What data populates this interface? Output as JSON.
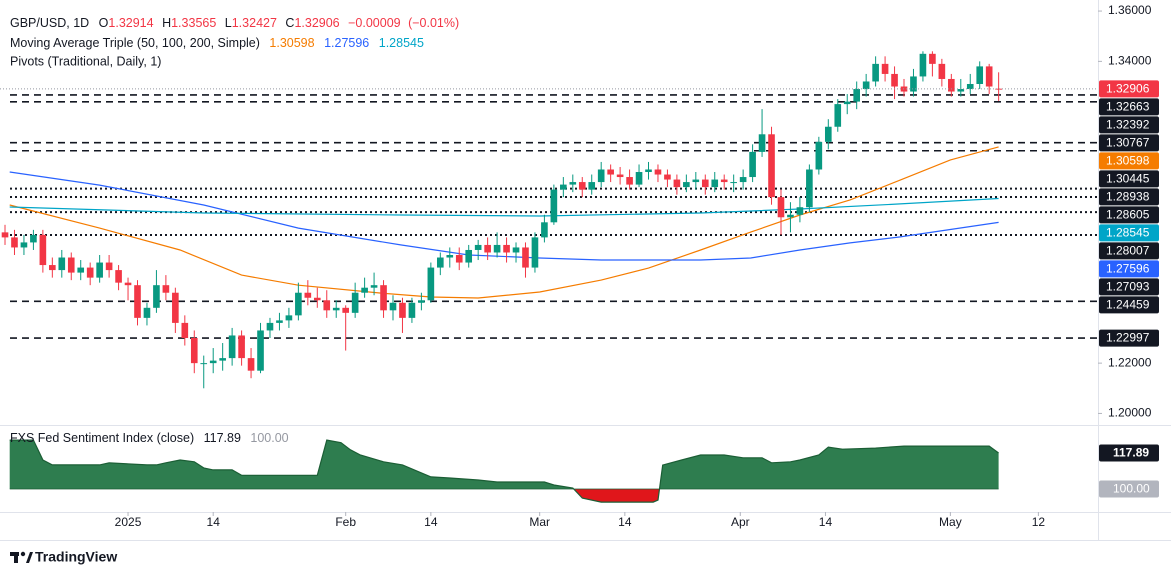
{
  "chart_data": {
    "type": "candlestick",
    "symbol": "GBP/USD, 1D",
    "ohlc_keys": [
      "O",
      "H",
      "L",
      "C"
    ],
    "ohlc": [
      1.32914,
      1.33565,
      1.32427,
      1.32906
    ],
    "change": {
      "value": -9e-05,
      "label": "−0.00009"
    },
    "change_pct": {
      "value": -0.01,
      "label": "(−0.01%)"
    },
    "up_color": "#089981",
    "down_color": "#f23645",
    "candles": [
      [
        1.272,
        1.275,
        1.267,
        1.27
      ],
      [
        1.27,
        1.273,
        1.263,
        1.266
      ],
      [
        1.266,
        1.271,
        1.263,
        1.268
      ],
      [
        1.268,
        1.273,
        1.265,
        1.271
      ],
      [
        1.271,
        1.273,
        1.256,
        1.259
      ],
      [
        1.259,
        1.262,
        1.254,
        1.257
      ],
      [
        1.257,
        1.265,
        1.254,
        1.262
      ],
      [
        1.262,
        1.264,
        1.253,
        1.256
      ],
      [
        1.256,
        1.261,
        1.253,
        1.258
      ],
      [
        1.258,
        1.26,
        1.251,
        1.254
      ],
      [
        1.254,
        1.263,
        1.252,
        1.26
      ],
      [
        1.26,
        1.263,
        1.254,
        1.257
      ],
      [
        1.257,
        1.259,
        1.249,
        1.252
      ],
      [
        1.252,
        1.254,
        1.245,
        1.251
      ],
      [
        1.251,
        1.253,
        1.235,
        1.238
      ],
      [
        1.238,
        1.244,
        1.235,
        1.242
      ],
      [
        1.242,
        1.257,
        1.24,
        1.251
      ],
      [
        1.251,
        1.255,
        1.245,
        1.248
      ],
      [
        1.248,
        1.25,
        1.232,
        1.236
      ],
      [
        1.236,
        1.239,
        1.227,
        1.23
      ],
      [
        1.23,
        1.233,
        1.216,
        1.22
      ],
      [
        1.22,
        1.223,
        1.21,
        1.22
      ],
      [
        1.22,
        1.226,
        1.216,
        1.221
      ],
      [
        1.221,
        1.228,
        1.217,
        1.222
      ],
      [
        1.222,
        1.234,
        1.219,
        1.231
      ],
      [
        1.231,
        1.233,
        1.219,
        1.222
      ],
      [
        1.222,
        1.226,
        1.214,
        1.217
      ],
      [
        1.217,
        1.236,
        1.216,
        1.233
      ],
      [
        1.233,
        1.238,
        1.23,
        1.236
      ],
      [
        1.236,
        1.24,
        1.233,
        1.237
      ],
      [
        1.237,
        1.242,
        1.234,
        1.239
      ],
      [
        1.239,
        1.252,
        1.237,
        1.248
      ],
      [
        1.248,
        1.253,
        1.243,
        1.246
      ],
      [
        1.246,
        1.25,
        1.242,
        1.245
      ],
      [
        1.245,
        1.249,
        1.238,
        1.241
      ],
      [
        1.241,
        1.245,
        1.238,
        1.242
      ],
      [
        1.242,
        1.243,
        1.225,
        1.24
      ],
      [
        1.24,
        1.252,
        1.238,
        1.248
      ],
      [
        1.248,
        1.254,
        1.246,
        1.25
      ],
      [
        1.25,
        1.256,
        1.247,
        1.251
      ],
      [
        1.251,
        1.253,
        1.238,
        1.241
      ],
      [
        1.241,
        1.247,
        1.237,
        1.244
      ],
      [
        1.244,
        1.246,
        1.232,
        1.238
      ],
      [
        1.238,
        1.246,
        1.236,
        1.244
      ],
      [
        1.244,
        1.248,
        1.241,
        1.245
      ],
      [
        1.245,
        1.26,
        1.244,
        1.258
      ],
      [
        1.258,
        1.264,
        1.255,
        1.262
      ],
      [
        1.262,
        1.266,
        1.258,
        1.263
      ],
      [
        1.263,
        1.266,
        1.257,
        1.26
      ],
      [
        1.26,
        1.267,
        1.258,
        1.265
      ],
      [
        1.265,
        1.269,
        1.261,
        1.267
      ],
      [
        1.267,
        1.27,
        1.261,
        1.264
      ],
      [
        1.264,
        1.272,
        1.262,
        1.267
      ],
      [
        1.267,
        1.27,
        1.26,
        1.264
      ],
      [
        1.264,
        1.268,
        1.26,
        1.266
      ],
      [
        1.266,
        1.268,
        1.254,
        1.258
      ],
      [
        1.258,
        1.272,
        1.256,
        1.27
      ],
      [
        1.27,
        1.279,
        1.268,
        1.276
      ],
      [
        1.276,
        1.291,
        1.275,
        1.289
      ],
      [
        1.289,
        1.294,
        1.286,
        1.291
      ],
      [
        1.291,
        1.295,
        1.288,
        1.292
      ],
      [
        1.292,
        1.294,
        1.286,
        1.289
      ],
      [
        1.289,
        1.295,
        1.287,
        1.292
      ],
      [
        1.292,
        1.3,
        1.29,
        1.297
      ],
      [
        1.297,
        1.299,
        1.292,
        1.295
      ],
      [
        1.295,
        1.298,
        1.291,
        1.294
      ],
      [
        1.294,
        1.297,
        1.289,
        1.291
      ],
      [
        1.291,
        1.299,
        1.29,
        1.296
      ],
      [
        1.296,
        1.3,
        1.293,
        1.297
      ],
      [
        1.297,
        1.299,
        1.292,
        1.295
      ],
      [
        1.295,
        1.297,
        1.29,
        1.293
      ],
      [
        1.293,
        1.295,
        1.287,
        1.29
      ],
      [
        1.29,
        1.295,
        1.288,
        1.292
      ],
      [
        1.292,
        1.296,
        1.289,
        1.293
      ],
      [
        1.293,
        1.295,
        1.287,
        1.29
      ],
      [
        1.29,
        1.296,
        1.288,
        1.293
      ],
      [
        1.293,
        1.295,
        1.289,
        1.292
      ],
      [
        1.292,
        1.295,
        1.288,
        1.292
      ],
      [
        1.292,
        1.297,
        1.289,
        1.294
      ],
      [
        1.294,
        1.307,
        1.292,
        1.304
      ],
      [
        1.304,
        1.321,
        1.302,
        1.311
      ],
      [
        1.311,
        1.314,
        1.283,
        1.286
      ],
      [
        1.286,
        1.289,
        1.271,
        1.278
      ],
      [
        1.278,
        1.284,
        1.272,
        1.279
      ],
      [
        1.279,
        1.286,
        1.276,
        1.282
      ],
      [
        1.282,
        1.299,
        1.28,
        1.297
      ],
      [
        1.297,
        1.31,
        1.295,
        1.308
      ],
      [
        1.308,
        1.317,
        1.305,
        1.314
      ],
      [
        1.314,
        1.325,
        1.312,
        1.323
      ],
      [
        1.323,
        1.327,
        1.319,
        1.324
      ],
      [
        1.324,
        1.332,
        1.321,
        1.329
      ],
      [
        1.329,
        1.335,
        1.326,
        1.332
      ],
      [
        1.332,
        1.342,
        1.33,
        1.339
      ],
      [
        1.339,
        1.342,
        1.332,
        1.335
      ],
      [
        1.335,
        1.338,
        1.325,
        1.33
      ],
      [
        1.33,
        1.333,
        1.326,
        1.328
      ],
      [
        1.328,
        1.337,
        1.326,
        1.334
      ],
      [
        1.334,
        1.344,
        1.332,
        1.343
      ],
      [
        1.343,
        1.344,
        1.334,
        1.339
      ],
      [
        1.339,
        1.341,
        1.33,
        1.333
      ],
      [
        1.333,
        1.335,
        1.326,
        1.328
      ],
      [
        1.328,
        1.333,
        1.326,
        1.329
      ],
      [
        1.329,
        1.335,
        1.327,
        1.331
      ],
      [
        1.331,
        1.34,
        1.329,
        1.338
      ],
      [
        1.338,
        1.339,
        1.327,
        1.33
      ],
      [
        1.32914,
        1.33565,
        1.32427,
        1.32906
      ]
    ],
    "xlim": [
      -0.53,
      115.5
    ],
    "xticks": [
      {
        "value": 13,
        "label": "2025"
      },
      {
        "value": 22,
        "label": "14"
      },
      {
        "value": 36,
        "label": "Feb"
      },
      {
        "value": 45,
        "label": "14"
      },
      {
        "value": 56.5,
        "label": "Mar"
      },
      {
        "value": 65.5,
        "label": "14"
      },
      {
        "value": 77.7,
        "label": "Apr"
      },
      {
        "value": 86.7,
        "label": "14"
      },
      {
        "value": 99.9,
        "label": "May"
      },
      {
        "value": 109.2,
        "label": "12"
      }
    ],
    "ylim": [
      1.1954,
      1.3644
    ],
    "yticks": [
      {
        "value": 1.36,
        "label": "1.36000"
      },
      {
        "value": 1.34,
        "label": "1.34000"
      },
      {
        "value": 1.22,
        "label": "1.22000"
      },
      {
        "value": 1.2,
        "label": "1.20000"
      }
    ],
    "moving_averages": {
      "title": "Moving Average Triple (50, 100, 200, Simple)",
      "series": [
        {
          "color": "#f57c00",
          "x": [
            0.5,
            10,
            18.5,
            25,
            31,
            39.6,
            45,
            50,
            56.5,
            63,
            68,
            73.5,
            78.8,
            84,
            89.3,
            94.6,
            99.9,
            105
          ],
          "values": [
            1.2829,
            1.2737,
            1.265,
            1.255,
            1.251,
            1.2479,
            1.2463,
            1.2459,
            1.2483,
            1.253,
            1.2578,
            1.265,
            1.2721,
            1.2789,
            1.2849,
            1.2928,
            1.3008,
            1.30598
          ]
        },
        {
          "color": "#2962ff",
          "x": [
            0.5,
            10,
            21,
            31,
            41.8,
            49,
            56.5,
            63,
            73.5,
            78.8,
            84,
            89.3,
            94.6,
            105
          ],
          "values": [
            1.296,
            1.2908,
            1.2829,
            1.2737,
            1.267,
            1.263,
            1.2618,
            1.261,
            1.261,
            1.2618,
            1.265,
            1.2678,
            1.2702,
            1.27596
          ]
        },
        {
          "color": "#00a5c8",
          "x": [
            0.5,
            21,
            41.8,
            56.5,
            73.5,
            84,
            94.6,
            105
          ],
          "values": [
            1.2821,
            1.2797,
            1.2789,
            1.2785,
            1.2797,
            1.2813,
            1.2833,
            1.28545
          ]
        }
      ]
    },
    "pivots": {
      "title": "Pivots (Traditional, Daily, 1)",
      "color": "#131722",
      "levels": [
        {
          "value": 1.32663,
          "style": "dashed"
        },
        {
          "value": 1.32392,
          "style": "dashed"
        },
        {
          "value": 1.30767,
          "style": "dashed"
        },
        {
          "value": 1.30445,
          "style": "dashed"
        },
        {
          "value": 1.28938,
          "style": "dotted"
        },
        {
          "value": 1.28605,
          "style": "dotted"
        },
        {
          "value": 1.28007,
          "style": "dotted"
        },
        {
          "value": 1.27093,
          "style": "dotted"
        },
        {
          "value": 1.24459,
          "style": "dashed"
        },
        {
          "value": 1.22997,
          "style": "dashed"
        }
      ]
    },
    "sentiment": {
      "type": "area",
      "title": "FXS Fed Sentiment Index (close)",
      "color": "#2e7d4f",
      "line_color": "#1b5e35",
      "negative_color": "#e0161b",
      "baseline": {
        "value": 100,
        "label": "100.00"
      },
      "ylim": [
        88.6,
        130.3
      ],
      "x": [
        0.5,
        3,
        4,
        5,
        10,
        11,
        15,
        16,
        17,
        18.5,
        20,
        21,
        22,
        24,
        25,
        33,
        34,
        35.5,
        36.5,
        37.5,
        40,
        42,
        44,
        45,
        47,
        50,
        52,
        57,
        58,
        60,
        61,
        63,
        68.5,
        69,
        69.5,
        71.5,
        73.5,
        76,
        78,
        80,
        81,
        83,
        84,
        86,
        87,
        88.5,
        92,
        95,
        101,
        104,
        105
      ],
      "values": [
        124.3,
        124.3,
        114.4,
        112,
        112,
        113,
        112,
        112,
        113,
        114.4,
        113.5,
        110.5,
        109.5,
        109.5,
        106.8,
        106.8,
        124.3,
        123,
        119.5,
        117,
        113.5,
        112,
        108,
        106,
        105.5,
        104.5,
        103.5,
        103.5,
        102,
        100.5,
        95.5,
        93.5,
        93.5,
        94.5,
        111.9,
        114.4,
        116.9,
        116.9,
        115.5,
        115.5,
        113,
        113.5,
        114.4,
        116.9,
        120.8,
        119.8,
        120.3,
        121.3,
        121.3,
        121.3,
        117.89
      ]
    },
    "footer": "TradingView"
  }
}
